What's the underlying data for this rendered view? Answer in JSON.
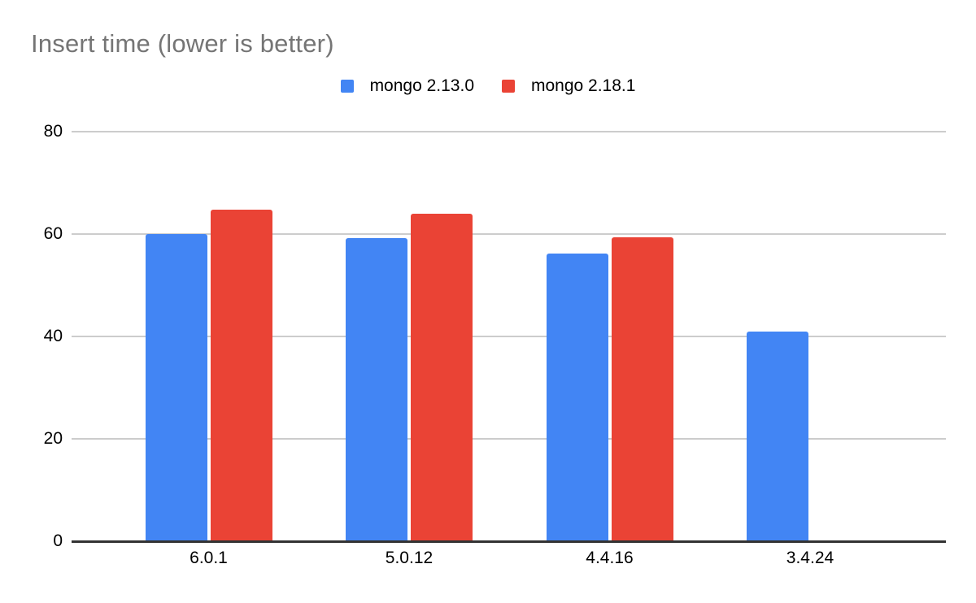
{
  "chart_data": {
    "type": "bar",
    "title": "Insert time (lower is better)",
    "categories": [
      "6.0.1",
      "5.0.12",
      "4.4.16",
      "3.4.24"
    ],
    "series": [
      {
        "name": "mongo 2.13.0",
        "color": "#4285F4",
        "values": [
          60,
          59.2,
          56.2,
          41
        ]
      },
      {
        "name": "mongo 2.18.1",
        "color": "#EA4335",
        "values": [
          64.8,
          63.9,
          59.4,
          null
        ]
      }
    ],
    "xlabel": "",
    "ylabel": "",
    "ylim": [
      0,
      80
    ],
    "yticks": [
      0,
      20,
      40,
      60,
      80
    ],
    "grid": true,
    "legend_position": "top",
    "colors": {
      "title_text": "#757575",
      "axis_text": "#000000",
      "gridline": "#cccccc",
      "axis_line": "#333333",
      "background": "#ffffff"
    }
  }
}
